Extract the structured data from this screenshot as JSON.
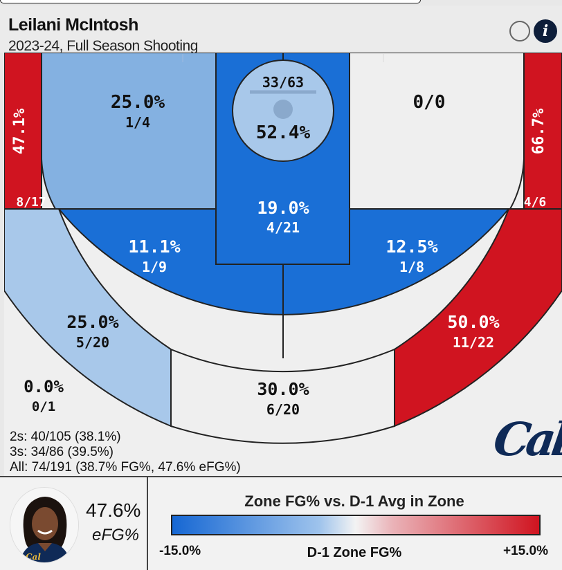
{
  "header": {
    "player_name": "Leilani McIntosh",
    "season_label": "2023-24, Full Season Shooting",
    "info_icon": "i"
  },
  "colors": {
    "blue_strong": "#1a6fd6",
    "blue_mid": "#84b1e1",
    "blue_light": "#a8c8ea",
    "neutral": "#efefef",
    "red": "#d01420",
    "court_line": "#222222",
    "logo_navy": "#0f2a57"
  },
  "chart_data": {
    "type": "heatmap",
    "title": "Leilani McIntosh",
    "subtitle": "2023-24, Full Season Shooting",
    "zones": [
      {
        "zone": "left-corner-3",
        "pct": "47.1%",
        "made_att": "8/17",
        "made": 8,
        "att": 17,
        "color": "red"
      },
      {
        "zone": "left-baseline-mid",
        "pct": "25.0%",
        "made_att": "1/4",
        "made": 1,
        "att": 4,
        "color": "blue_mid"
      },
      {
        "zone": "rim",
        "pct": "52.4%",
        "made_att": "33/63",
        "made": 33,
        "att": 63,
        "color": "blue_light"
      },
      {
        "zone": "right-baseline-mid",
        "pct": "",
        "made_att": "0/0",
        "made": 0,
        "att": 0,
        "color": "neutral"
      },
      {
        "zone": "right-corner-3",
        "pct": "66.7%",
        "made_att": "4/6",
        "made": 4,
        "att": 6,
        "color": "red"
      },
      {
        "zone": "paint",
        "pct": "19.0%",
        "made_att": "4/21",
        "made": 4,
        "att": 21,
        "color": "blue_strong"
      },
      {
        "zone": "left-elbow-mid",
        "pct": "11.1%",
        "made_att": "1/9",
        "made": 1,
        "att": 9,
        "color": "blue_strong"
      },
      {
        "zone": "right-elbow-mid",
        "pct": "12.5%",
        "made_att": "1/8",
        "made": 1,
        "att": 8,
        "color": "blue_strong"
      },
      {
        "zone": "left-wing-3",
        "pct": "25.0%",
        "made_att": "5/20",
        "made": 5,
        "att": 20,
        "color": "blue_light"
      },
      {
        "zone": "top-3",
        "pct": "30.0%",
        "made_att": "6/20",
        "made": 6,
        "att": 20,
        "color": "neutral"
      },
      {
        "zone": "right-wing-3",
        "pct": "50.0%",
        "made_att": "11/22",
        "made": 11,
        "att": 22,
        "color": "red"
      },
      {
        "zone": "deep-left",
        "pct": "0.0%",
        "made_att": "0/1",
        "made": 0,
        "att": 1,
        "color": "neutral"
      }
    ],
    "legend": {
      "title": "Zone FG% vs. D-1 Avg in Zone",
      "axis_label": "D-1 Zone FG%",
      "min_label": "-15.0%",
      "max_label": "+15.0%",
      "range": [
        -15.0,
        15.0
      ]
    }
  },
  "summary": {
    "twos": "2s: 40/105 (38.1%)",
    "threes": "3s: 34/86 (39.5%)",
    "all": "All: 74/191 (38.7% FG%, 47.6% eFG%)"
  },
  "logo_text": "Cal",
  "efg": {
    "value": "47.6%",
    "label": "eFG%"
  }
}
